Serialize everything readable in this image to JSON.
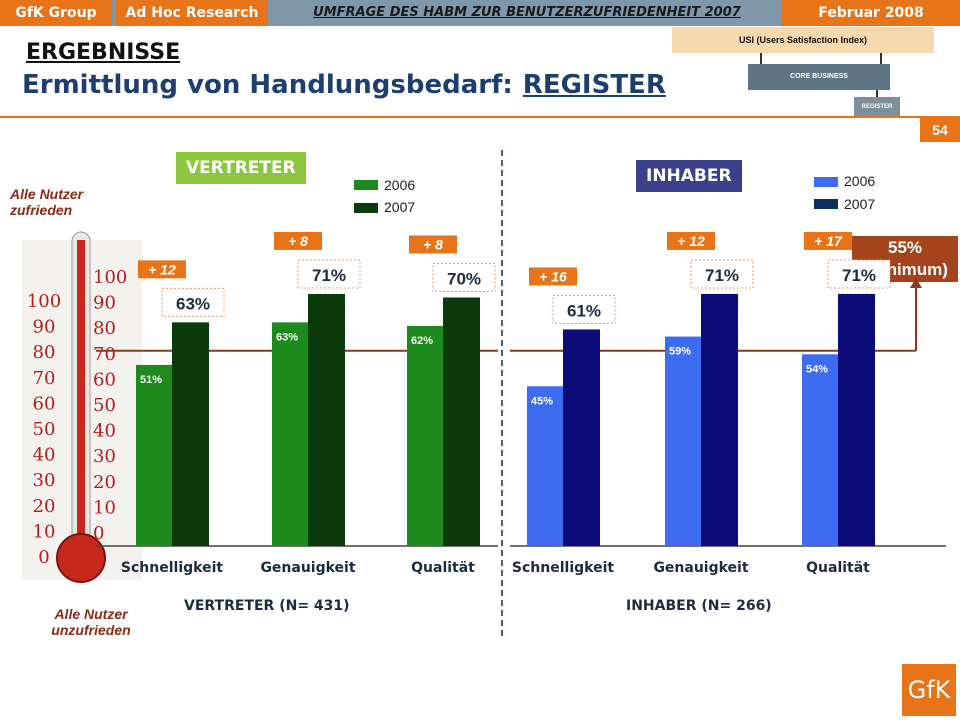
{
  "header": {
    "gfk": "GfK Group",
    "adhoc": "Ad Hoc Research",
    "survey": "UMFRAGE DES HABM ZUR BENUTZERZUFRIEDENHEIT 2007",
    "date": "Februar 2008"
  },
  "title": {
    "line1": "ERGEBNISSE",
    "line2": "Ermittlung von Handlungsbedarf:",
    "line2_emph": "REGISTER"
  },
  "page_number": "54",
  "hierarchy": {
    "usi": "USI (Users Satisfaction Index)",
    "core": "CORE BUSINESS",
    "register": "REGISTER"
  },
  "panels": {
    "vertreter": "VERTRETER",
    "inhaber": "INHABER"
  },
  "legend": {
    "vertreter": {
      "y2006": "2006",
      "y2007": "2007"
    },
    "inhaber": {
      "y2006": "2006",
      "y2007": "2007"
    }
  },
  "thermometer": {
    "top_label": "Alle Nutzer zufrieden",
    "bottom_label": "Alle Nutzer unzufrieden",
    "ticks": [
      "100",
      "90",
      "80",
      "70",
      "60",
      "50",
      "40",
      "30",
      "20",
      "10",
      "0"
    ]
  },
  "threshold": {
    "value_line1": "55%",
    "value_line2": "(Minimum)"
  },
  "footers": {
    "vertreter": "VERTRETER (N= 431)",
    "inhaber": "INHABER (N= 266)"
  },
  "logo": "GfK",
  "colors": {
    "orange": "#e8741a",
    "vertreter_2006": "#1e8a1e",
    "vertreter_2007": "#0b3b0b",
    "inhaber_2006": "#3d6cf0",
    "inhaber_2007": "#0b0b7a",
    "threshold": "#8b3a1e"
  },
  "chart_data": [
    {
      "type": "bar",
      "group": "VERTRETER",
      "categories": [
        "Schnelligkeit",
        "Genauigkeit",
        "Qualität"
      ],
      "series": [
        {
          "name": "2006",
          "values": [
            51,
            63,
            62
          ],
          "labels": [
            "51%",
            "63%",
            "62%"
          ]
        },
        {
          "name": "2007",
          "values": [
            63,
            71,
            70
          ],
          "labels": [
            "63%",
            "71%",
            "70%"
          ]
        }
      ],
      "deltas": [
        "+ 12",
        "+ 8",
        "+ 8"
      ],
      "ylim": [
        0,
        100
      ],
      "threshold": 55
    },
    {
      "type": "bar",
      "group": "INHABER",
      "categories": [
        "Schnelligkeit",
        "Genauigkeit",
        "Qualität"
      ],
      "series": [
        {
          "name": "2006",
          "values": [
            45,
            59,
            54
          ],
          "labels": [
            "45%",
            "59%",
            "54%"
          ]
        },
        {
          "name": "2007",
          "values": [
            61,
            71,
            71
          ],
          "labels": [
            "61%",
            "71%",
            "71%"
          ]
        }
      ],
      "deltas": [
        "+ 16",
        "+ 12",
        "+ 17"
      ],
      "ylim": [
        0,
        100
      ],
      "threshold": 55
    }
  ]
}
